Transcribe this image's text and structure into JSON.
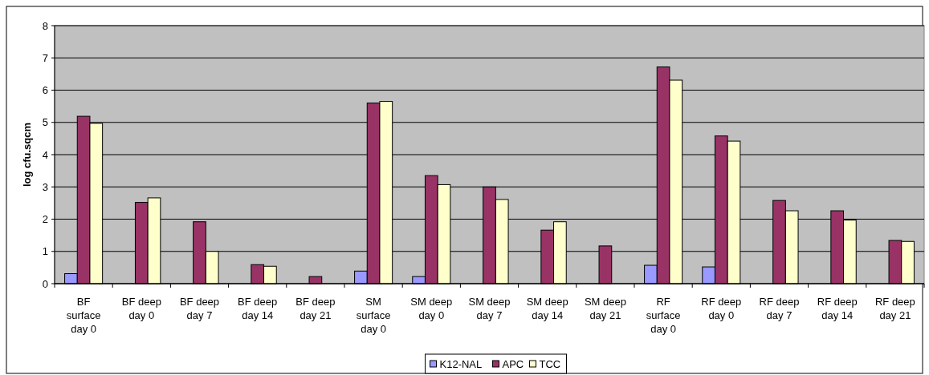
{
  "chart_data": {
    "type": "bar",
    "ylabel": "log cfu.sqcm",
    "categories": [
      "BF surface day 0",
      "BF deep day 0",
      "BF deep day 7",
      "BF deep day 14",
      "BF deep day 21",
      "SM surface day 0",
      "SM deep day 0",
      "SM deep day 7",
      "SM deep day 14",
      "SM deep day 21",
      "RF surface day 0",
      "RF deep day 0",
      "RF deep day 7",
      "RF deep day 14",
      "RF deep day 21"
    ],
    "series": [
      {
        "name": "K12-NAL",
        "color": "#9999ff",
        "values": [
          0.31,
          null,
          null,
          null,
          null,
          0.39,
          0.22,
          null,
          null,
          null,
          0.57,
          0.52,
          null,
          null,
          null
        ]
      },
      {
        "name": "APC",
        "color": "#993366",
        "values": [
          5.19,
          2.52,
          1.92,
          0.59,
          0.22,
          5.6,
          3.35,
          3.0,
          1.66,
          1.17,
          6.72,
          4.58,
          2.58,
          2.26,
          1.34
        ]
      },
      {
        "name": "TCC",
        "color": "#ffffcc",
        "values": [
          4.97,
          2.66,
          1.0,
          0.54,
          null,
          5.65,
          3.07,
          2.61,
          1.92,
          null,
          6.31,
          4.42,
          2.26,
          1.97,
          1.31
        ]
      }
    ],
    "ylim": [
      0,
      8
    ],
    "yticks": [
      0,
      1,
      2,
      3,
      4,
      5,
      6,
      7,
      8
    ],
    "grid": "y",
    "legend": "bottom"
  }
}
